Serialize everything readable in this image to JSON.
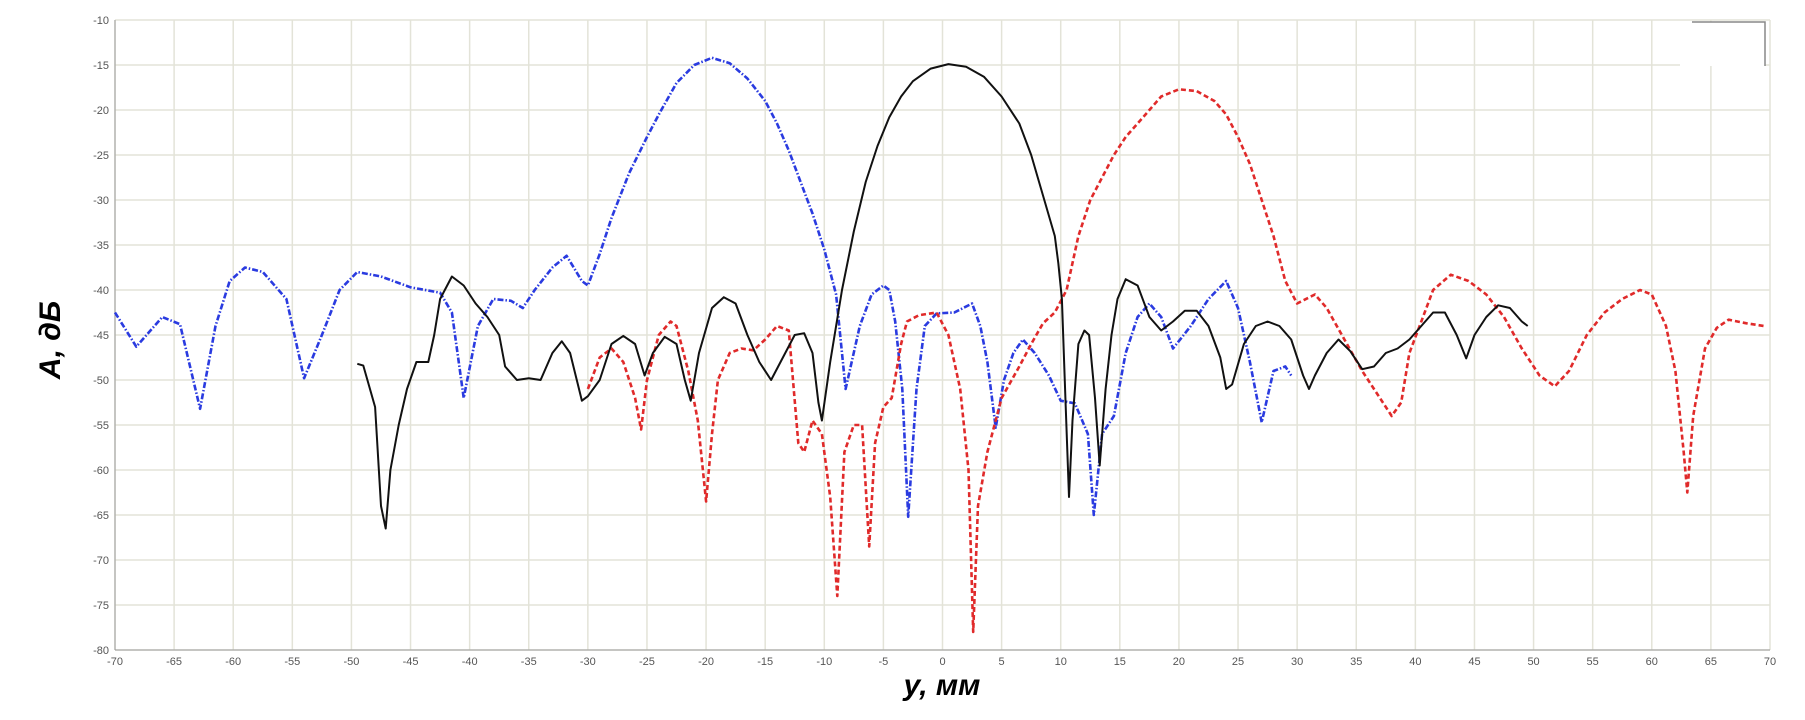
{
  "chart_data": {
    "type": "line",
    "xlabel": "y, мм",
    "ylabel": "A, дБ",
    "xlim": [
      -70,
      70
    ],
    "ylim": [
      -80,
      -10
    ],
    "x_ticks": [
      -70,
      -65,
      -60,
      -55,
      -50,
      -45,
      -40,
      -35,
      -30,
      -25,
      -20,
      -15,
      -10,
      -5,
      0,
      5,
      10,
      15,
      20,
      25,
      30,
      35,
      40,
      45,
      50,
      55,
      60,
      65,
      70
    ],
    "y_ticks": [
      -10,
      -15,
      -20,
      -25,
      -30,
      -35,
      -40,
      -45,
      -50,
      -55,
      -60,
      -65,
      -70,
      -75,
      -80
    ],
    "grid": true,
    "series": [
      {
        "color": "#2a3be0",
        "style": "dash-dot",
        "points": [
          [
            -70,
            -42.5
          ],
          [
            -68.2,
            -46.3
          ],
          [
            -66,
            -43
          ],
          [
            -64.5,
            -43.8
          ],
          [
            -62.8,
            -53.2
          ],
          [
            -61.5,
            -44
          ],
          [
            -60.3,
            -39
          ],
          [
            -59,
            -37.5
          ],
          [
            -57.5,
            -38
          ],
          [
            -55.5,
            -41
          ],
          [
            -54,
            -49.8
          ],
          [
            -52.5,
            -45
          ],
          [
            -51,
            -40
          ],
          [
            -49.5,
            -38
          ],
          [
            -47.5,
            -38.5
          ],
          [
            -45,
            -39.7
          ],
          [
            -42.5,
            -40.3
          ],
          [
            -41.5,
            -42.5
          ],
          [
            -40.5,
            -52
          ],
          [
            -39.3,
            -44
          ],
          [
            -38,
            -41
          ],
          [
            -36.5,
            -41.2
          ],
          [
            -35.5,
            -42
          ],
          [
            -34.5,
            -40
          ],
          [
            -33,
            -37.5
          ],
          [
            -31.8,
            -36.2
          ],
          [
            -30.5,
            -39
          ],
          [
            -30,
            -39.5
          ],
          [
            -29,
            -36
          ],
          [
            -28,
            -32
          ],
          [
            -26.5,
            -27
          ],
          [
            -25,
            -23
          ],
          [
            -24,
            -20.5
          ],
          [
            -22.5,
            -17
          ],
          [
            -21,
            -15
          ],
          [
            -19.5,
            -14.2
          ],
          [
            -18,
            -14.8
          ],
          [
            -16.5,
            -16.5
          ],
          [
            -15,
            -19
          ],
          [
            -14,
            -21.5
          ],
          [
            -13,
            -24.5
          ],
          [
            -12,
            -28
          ],
          [
            -11,
            -31.5
          ],
          [
            -10,
            -35.5
          ],
          [
            -9,
            -40.5
          ],
          [
            -8.2,
            -51
          ],
          [
            -7,
            -44
          ],
          [
            -6,
            -40.5
          ],
          [
            -5,
            -39.5
          ],
          [
            -4.5,
            -40
          ],
          [
            -4,
            -43.5
          ],
          [
            -3.4,
            -51
          ],
          [
            -2.9,
            -65.2
          ],
          [
            -2.2,
            -51
          ],
          [
            -1.5,
            -44
          ],
          [
            -0.5,
            -42.6
          ],
          [
            1,
            -42.5
          ],
          [
            2.5,
            -41.5
          ],
          [
            3.2,
            -44
          ],
          [
            3.8,
            -48
          ],
          [
            4.5,
            -55.3
          ],
          [
            5.2,
            -50
          ],
          [
            6,
            -47
          ],
          [
            6.8,
            -45.5
          ],
          [
            7.8,
            -47
          ],
          [
            9,
            -49.5
          ],
          [
            10,
            -52.3
          ],
          [
            11.2,
            -52.6
          ],
          [
            12.3,
            -56
          ],
          [
            12.8,
            -65
          ],
          [
            13.5,
            -56
          ],
          [
            14.5,
            -54
          ],
          [
            15.5,
            -47
          ],
          [
            16.5,
            -43
          ],
          [
            17.5,
            -41.5
          ],
          [
            18.5,
            -43
          ],
          [
            19.5,
            -46.5
          ],
          [
            21,
            -44
          ],
          [
            22.5,
            -41
          ],
          [
            24,
            -39
          ],
          [
            25,
            -42
          ],
          [
            26,
            -48
          ],
          [
            27,
            -54.7
          ],
          [
            28,
            -49
          ],
          [
            29,
            -48.5
          ],
          [
            29.5,
            -49.5
          ]
        ]
      },
      {
        "color": "#e02a2a",
        "style": "dash",
        "points": [
          [
            -30,
            -51
          ],
          [
            -29,
            -47.5
          ],
          [
            -28,
            -46.5
          ],
          [
            -27,
            -48
          ],
          [
            -26,
            -52
          ],
          [
            -25.5,
            -55.5
          ],
          [
            -25,
            -50
          ],
          [
            -24,
            -45
          ],
          [
            -23,
            -43.5
          ],
          [
            -22.5,
            -44
          ],
          [
            -21.5,
            -49
          ],
          [
            -20.7,
            -54.5
          ],
          [
            -20,
            -63.5
          ],
          [
            -19.5,
            -56
          ],
          [
            -19,
            -50
          ],
          [
            -18,
            -47
          ],
          [
            -17,
            -46.5
          ],
          [
            -16,
            -46.7
          ],
          [
            -15,
            -45.5
          ],
          [
            -14,
            -44
          ],
          [
            -13,
            -44.5
          ],
          [
            -12.2,
            -57
          ],
          [
            -11.7,
            -58
          ],
          [
            -11,
            -54.5
          ],
          [
            -10.2,
            -56
          ],
          [
            -9.5,
            -63
          ],
          [
            -8.9,
            -74
          ],
          [
            -8.3,
            -58
          ],
          [
            -7.5,
            -55
          ],
          [
            -6.8,
            -55
          ],
          [
            -6.2,
            -68.5
          ],
          [
            -5.7,
            -57
          ],
          [
            -5,
            -53
          ],
          [
            -4.3,
            -52
          ],
          [
            -3.5,
            -46
          ],
          [
            -3,
            -43.5
          ],
          [
            -2,
            -42.8
          ],
          [
            -0.5,
            -42.5
          ],
          [
            0.5,
            -45
          ],
          [
            1.5,
            -51
          ],
          [
            2.2,
            -60
          ],
          [
            2.6,
            -78
          ],
          [
            3,
            -64
          ],
          [
            3.8,
            -58
          ],
          [
            5,
            -52
          ],
          [
            6.5,
            -48.5
          ],
          [
            7.5,
            -46
          ],
          [
            8.5,
            -43.7
          ],
          [
            9.5,
            -42.5
          ],
          [
            10.5,
            -40
          ],
          [
            11.5,
            -34
          ],
          [
            12.5,
            -30
          ],
          [
            13.5,
            -27.5
          ],
          [
            14.5,
            -25
          ],
          [
            15.5,
            -23
          ],
          [
            16.5,
            -21.5
          ],
          [
            17.5,
            -20
          ],
          [
            18.5,
            -18.5
          ],
          [
            20,
            -17.7
          ],
          [
            21.5,
            -17.9
          ],
          [
            23,
            -19
          ],
          [
            24,
            -20.5
          ],
          [
            25,
            -23
          ],
          [
            26,
            -26
          ],
          [
            27,
            -30
          ],
          [
            28,
            -34
          ],
          [
            29,
            -39
          ],
          [
            30,
            -41.5
          ],
          [
            31.5,
            -40.5
          ],
          [
            32.5,
            -42
          ],
          [
            34,
            -45.5
          ],
          [
            35.5,
            -49
          ],
          [
            37,
            -52
          ],
          [
            38,
            -54
          ],
          [
            38.8,
            -52.5
          ],
          [
            39.5,
            -47
          ],
          [
            40.5,
            -43.5
          ],
          [
            41.5,
            -40
          ],
          [
            43,
            -38.3
          ],
          [
            44.5,
            -39
          ],
          [
            46,
            -40.5
          ],
          [
            47.5,
            -43
          ],
          [
            49,
            -46.5
          ],
          [
            50.5,
            -49.5
          ],
          [
            51.8,
            -50.7
          ],
          [
            53,
            -49
          ],
          [
            54.5,
            -45
          ],
          [
            56,
            -42.5
          ],
          [
            57.5,
            -41
          ],
          [
            59,
            -40
          ],
          [
            60,
            -40.5
          ],
          [
            61.2,
            -44
          ],
          [
            62,
            -49
          ],
          [
            62.7,
            -58
          ],
          [
            63,
            -62.5
          ],
          [
            63.5,
            -54
          ],
          [
            64.5,
            -46.5
          ],
          [
            65.5,
            -44.2
          ],
          [
            66.5,
            -43.3
          ],
          [
            68,
            -43.7
          ],
          [
            69.5,
            -44
          ]
        ]
      },
      {
        "color": "#111111",
        "style": "solid",
        "points": [
          [
            -49.5,
            -48.2
          ],
          [
            -49,
            -48.4
          ],
          [
            -48,
            -53
          ],
          [
            -47.5,
            -64
          ],
          [
            -47.1,
            -66.5
          ],
          [
            -46.7,
            -60
          ],
          [
            -46,
            -55
          ],
          [
            -45.3,
            -51
          ],
          [
            -44.5,
            -48
          ],
          [
            -43.5,
            -48
          ],
          [
            -43,
            -45
          ],
          [
            -42.5,
            -41
          ],
          [
            -41.5,
            -38.5
          ],
          [
            -40.5,
            -39.5
          ],
          [
            -39.5,
            -41.5
          ],
          [
            -38.5,
            -43
          ],
          [
            -37.5,
            -45
          ],
          [
            -37,
            -48.5
          ],
          [
            -36,
            -50
          ],
          [
            -35,
            -49.8
          ],
          [
            -34,
            -50
          ],
          [
            -33,
            -47
          ],
          [
            -32.2,
            -45.7
          ],
          [
            -31.5,
            -47
          ],
          [
            -30.5,
            -52.3
          ],
          [
            -30,
            -51.8
          ],
          [
            -29,
            -50
          ],
          [
            -28,
            -46
          ],
          [
            -27,
            -45.1
          ],
          [
            -26,
            -46
          ],
          [
            -25.2,
            -49.5
          ],
          [
            -24.5,
            -47
          ],
          [
            -23.5,
            -45.2
          ],
          [
            -22.5,
            -46
          ],
          [
            -21.8,
            -50
          ],
          [
            -21.3,
            -52.3
          ],
          [
            -20.6,
            -47
          ],
          [
            -19.5,
            -42
          ],
          [
            -18.5,
            -40.8
          ],
          [
            -17.5,
            -41.5
          ],
          [
            -16.5,
            -45
          ],
          [
            -15.5,
            -48
          ],
          [
            -14.5,
            -50
          ],
          [
            -13.5,
            -47.5
          ],
          [
            -12.5,
            -45
          ],
          [
            -11.7,
            -44.8
          ],
          [
            -11,
            -47
          ],
          [
            -10.5,
            -52.5
          ],
          [
            -10.2,
            -54.5
          ],
          [
            -9.5,
            -48
          ],
          [
            -8.5,
            -40
          ],
          [
            -7.5,
            -33.5
          ],
          [
            -6.5,
            -28
          ],
          [
            -5.5,
            -24
          ],
          [
            -4.5,
            -20.8
          ],
          [
            -3.5,
            -18.5
          ],
          [
            -2.5,
            -16.8
          ],
          [
            -1,
            -15.4
          ],
          [
            0.5,
            -14.9
          ],
          [
            2,
            -15.2
          ],
          [
            3.5,
            -16.3
          ],
          [
            5,
            -18.5
          ],
          [
            6.5,
            -21.5
          ],
          [
            7.5,
            -25
          ],
          [
            8.5,
            -29.5
          ],
          [
            9.5,
            -34
          ],
          [
            9.8,
            -37
          ],
          [
            10.1,
            -41
          ],
          [
            10.4,
            -52
          ],
          [
            10.7,
            -63
          ],
          [
            11,
            -54.5
          ],
          [
            11.5,
            -46
          ],
          [
            12,
            -44.5
          ],
          [
            12.4,
            -45
          ],
          [
            12.9,
            -52
          ],
          [
            13.3,
            -59.5
          ],
          [
            13.8,
            -51
          ],
          [
            14.3,
            -45
          ],
          [
            14.8,
            -41
          ],
          [
            15.5,
            -38.8
          ],
          [
            16.5,
            -39.5
          ],
          [
            17.5,
            -43
          ],
          [
            18.5,
            -44.5
          ],
          [
            19.5,
            -43.5
          ],
          [
            20.5,
            -42.3
          ],
          [
            21.5,
            -42.3
          ],
          [
            22.5,
            -44
          ],
          [
            23.5,
            -47.5
          ],
          [
            24,
            -51
          ],
          [
            24.5,
            -50.5
          ],
          [
            25.5,
            -46
          ],
          [
            26.5,
            -44
          ],
          [
            27.5,
            -43.5
          ],
          [
            28.5,
            -44
          ],
          [
            29.5,
            -45.5
          ],
          [
            30.5,
            -49.5
          ],
          [
            31,
            -51
          ],
          [
            31.5,
            -49.5
          ],
          [
            32.5,
            -47
          ],
          [
            33.5,
            -45.5
          ],
          [
            34.5,
            -46.8
          ],
          [
            35.5,
            -48.8
          ],
          [
            36.5,
            -48.5
          ],
          [
            37.5,
            -47
          ],
          [
            38.5,
            -46.5
          ],
          [
            39.5,
            -45.5
          ],
          [
            40.5,
            -44
          ],
          [
            41.5,
            -42.5
          ],
          [
            42.5,
            -42.5
          ],
          [
            43.5,
            -45
          ],
          [
            44.3,
            -47.6
          ],
          [
            45,
            -45
          ],
          [
            46,
            -43
          ],
          [
            47,
            -41.7
          ],
          [
            48,
            -42
          ],
          [
            49,
            -43.5
          ],
          [
            49.5,
            -44
          ]
        ]
      }
    ]
  }
}
